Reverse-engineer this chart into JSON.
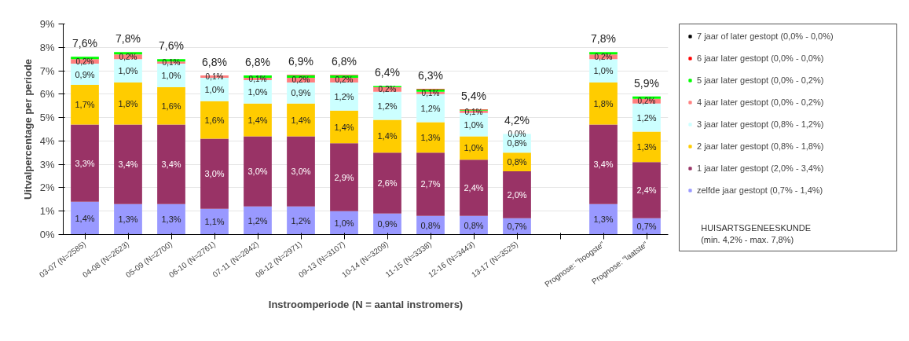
{
  "chart_data": {
    "type": "bar",
    "stacked": true,
    "xlabel": "Instroomperiode (N = aantal instromers)",
    "ylabel": "Uitvalpercentage per periode",
    "categories": [
      "03-07 (N=2585)",
      "04-08 (N=2623)",
      "05-09 (N=2700)",
      "06-10 (N=2761)",
      "07-11 (N=2842)",
      "08-12 (N=2971)",
      "09-13 (N=3107)",
      "10-14 (N=3209)",
      "11-15 (N=3338)",
      "12-16 (N=3443)",
      "13-17 (N=3525)",
      null,
      "Prognose: \"hoogste\"",
      "Prognose: \"laatste\""
    ],
    "series": [
      {
        "name": "zelfde jaar gestopt (0,7% - 1,4%)",
        "color": "#9999ff",
        "values": [
          1.4,
          1.3,
          1.3,
          1.1,
          1.2,
          1.2,
          1.0,
          0.9,
          0.8,
          0.8,
          0.7,
          null,
          1.3,
          0.7
        ],
        "value_labels": [
          "1,4%",
          "1,3%",
          "1,3%",
          "1,1%",
          "1,2%",
          "1,2%",
          "1,0%",
          "0,9%",
          "0,8%",
          "0,8%",
          "0,7%",
          null,
          "1,3%",
          "0,7%"
        ]
      },
      {
        "name": "1 jaar later gestopt (2,0% - 3,4%)",
        "color": "#993366",
        "values": [
          3.3,
          3.4,
          3.4,
          3.0,
          3.0,
          3.0,
          2.9,
          2.6,
          2.7,
          2.4,
          2.0,
          null,
          3.4,
          2.4
        ],
        "value_labels": [
          "3,3%",
          "3,4%",
          "3,4%",
          "3,0%",
          "3,0%",
          "3,0%",
          "2,9%",
          "2,6%",
          "2,7%",
          "2,4%",
          "2,0%",
          null,
          "3,4%",
          "2,4%"
        ]
      },
      {
        "name": "2 jaar later gestopt (0,8% - 1,8%)",
        "color": "#ffcc00",
        "values": [
          1.7,
          1.8,
          1.6,
          1.6,
          1.4,
          1.4,
          1.4,
          1.4,
          1.3,
          1.0,
          0.8,
          null,
          1.8,
          1.3
        ],
        "value_labels": [
          "1,7%",
          "1,8%",
          "1,6%",
          "1,6%",
          "1,4%",
          "1,4%",
          "1,4%",
          "1,4%",
          "1,3%",
          "1,0%",
          "0,8%",
          null,
          "1,8%",
          "1,3%"
        ]
      },
      {
        "name": "3 jaar later gestopt (0,8% - 1,2%)",
        "color": "#ccffff",
        "values": [
          0.9,
          1.0,
          1.0,
          1.0,
          1.0,
          0.9,
          1.2,
          1.2,
          1.2,
          1.0,
          0.8,
          null,
          1.0,
          1.2
        ],
        "value_labels": [
          "0,9%",
          "1,0%",
          "1,0%",
          "1,0%",
          "1,0%",
          "0,9%",
          "1,2%",
          "1,2%",
          "1,2%",
          "1,0%",
          "0,8%",
          null,
          "1,0%",
          "1,2%"
        ]
      },
      {
        "name": "4 jaar later gestopt (0,0% - 0,2%)",
        "color": "#ff8080",
        "values": [
          0.2,
          0.2,
          0.1,
          0.1,
          0.1,
          0.2,
          0.2,
          0.2,
          0.1,
          0.1,
          0.0,
          null,
          0.2,
          0.2
        ],
        "value_labels": [
          "0,2%",
          "0,2%",
          "0,1%",
          "0,1%",
          "0,1%",
          "0,2%",
          "0,2%",
          "0,2%",
          "0,1%",
          "0,1%",
          "0,0%",
          null,
          "0,2%",
          "0,2%"
        ]
      },
      {
        "name": "5 jaar later gestopt (0,0% - 0,2%)",
        "color": "#00ff00",
        "values": [
          0.1,
          0.1,
          0.1,
          null,
          0.1,
          0.1,
          0.1,
          0.05,
          0.1,
          0.03,
          0.0,
          null,
          0.1,
          0.1
        ]
      },
      {
        "name": "6 jaar later gestopt (0,0% - 0,0%)",
        "color": "#ff0000",
        "values": [
          0.0,
          0.0,
          0.0,
          0.0,
          0.0,
          0.02,
          0.02,
          null,
          0.02,
          0.02,
          0.0,
          null,
          0.0,
          0.0
        ]
      },
      {
        "name": "7 jaar of later gestopt (0,0% - 0,0%)",
        "color": "#000000",
        "values": [
          0.0,
          0.0,
          0.0,
          0.0,
          0.0,
          0.0,
          0.0,
          0.0,
          0.0,
          0.0,
          0.0,
          null,
          0.0,
          0.0
        ]
      }
    ],
    "totals": [
      "7,6%",
      "7,8%",
      "7,6%",
      "6,8%",
      "6,8%",
      "6,9%",
      "6,8%",
      "6,4%",
      "6,3%",
      "5,4%",
      "4,2%",
      null,
      "7,8%",
      "5,9%"
    ],
    "ylim": [
      0,
      9
    ],
    "yticks": [
      {
        "value": 0,
        "label": "0%"
      },
      {
        "value": 1,
        "label": "1%"
      },
      {
        "value": 2,
        "label": "2%"
      },
      {
        "value": 3,
        "label": "3%"
      },
      {
        "value": 4,
        "label": "4%"
      },
      {
        "value": 5,
        "label": "5%"
      },
      {
        "value": 6,
        "label": "6%"
      },
      {
        "value": 7,
        "label": "7%"
      },
      {
        "value": 8,
        "label": "8%"
      },
      {
        "value": 9,
        "label": "9%"
      }
    ],
    "grid": "y",
    "legend": "right",
    "annotations": [
      "HUISARTSGENEESKUNDE\n(min. 4,2% - max. 7,8%)"
    ]
  }
}
